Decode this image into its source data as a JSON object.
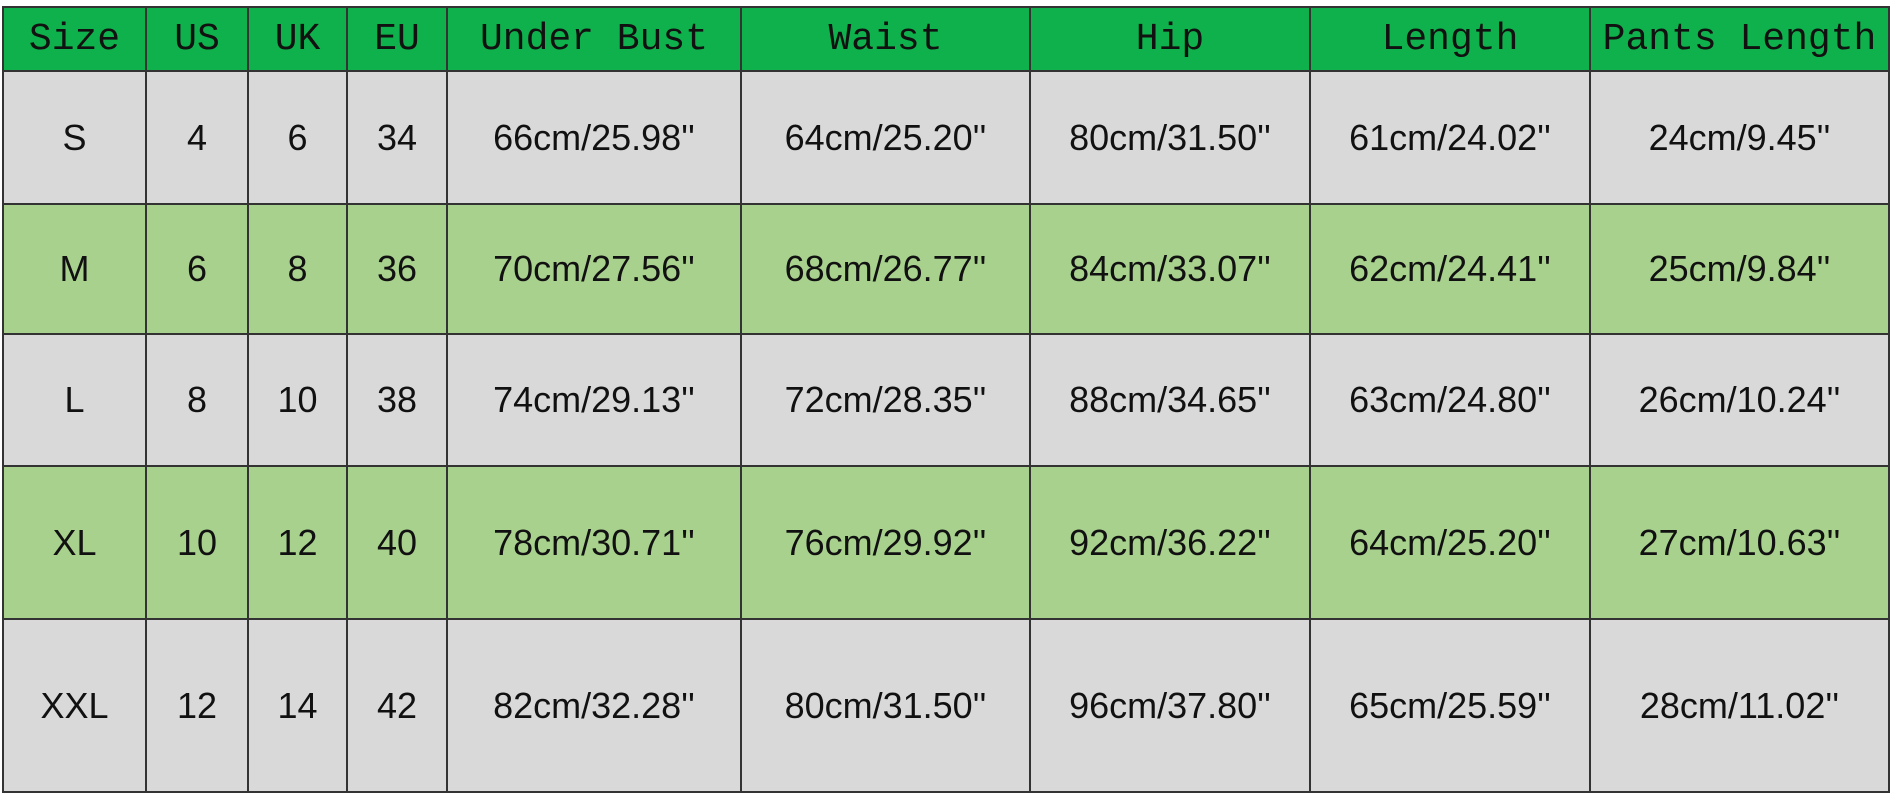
{
  "table": {
    "header": [
      "Size",
      "US",
      "UK",
      "EU",
      "Under Bust",
      "Waist",
      "Hip",
      "Length",
      "Pants Length"
    ],
    "rows": [
      [
        "S",
        "4",
        "6",
        "34",
        "66cm/25.98''",
        "64cm/25.20''",
        "80cm/31.50''",
        "61cm/24.02''",
        "24cm/9.45''"
      ],
      [
        "M",
        "6",
        "8",
        "36",
        "70cm/27.56''",
        "68cm/26.77''",
        "84cm/33.07''",
        "62cm/24.41''",
        "25cm/9.84''"
      ],
      [
        "L",
        "8",
        "10",
        "38",
        "74cm/29.13''",
        "72cm/28.35''",
        "88cm/34.65''",
        "63cm/24.80''",
        "26cm/10.24''"
      ],
      [
        "XL",
        "10",
        "12",
        "40",
        "78cm/30.71''",
        "76cm/29.92''",
        "92cm/36.22''",
        "64cm/25.20''",
        "27cm/10.63''"
      ],
      [
        "XXL",
        "12",
        "14",
        "42",
        "82cm/32.28''",
        "80cm/31.50''",
        "96cm/37.80''",
        "65cm/25.59''",
        "28cm/11.02''"
      ]
    ]
  }
}
